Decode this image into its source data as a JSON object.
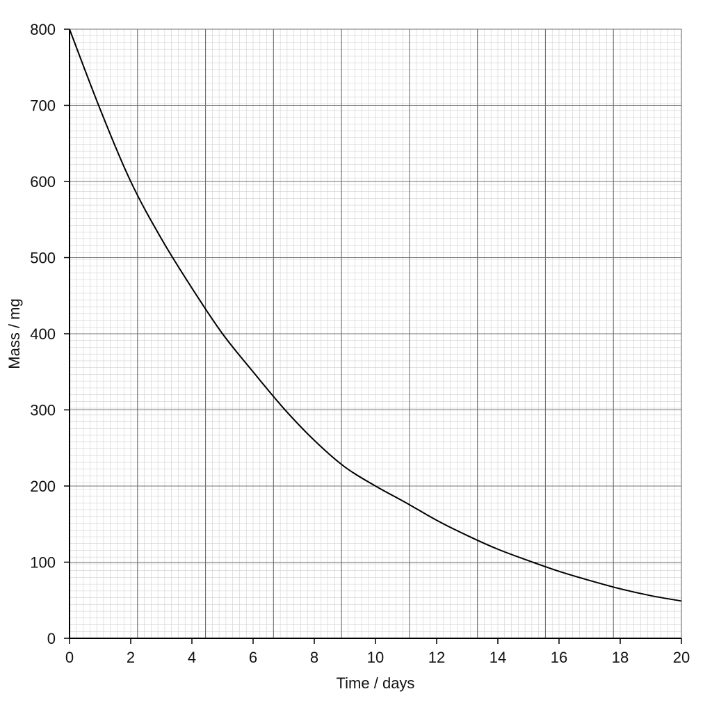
{
  "chart_data": {
    "type": "line",
    "xlabel": "Time / days",
    "ylabel": "Mass / mg",
    "xlim": [
      0,
      20
    ],
    "ylim": [
      0,
      800
    ],
    "x_ticks": [
      "0",
      "2",
      "4",
      "6",
      "8",
      "10",
      "12",
      "14",
      "16",
      "18",
      "20"
    ],
    "y_ticks": [
      "0",
      "100",
      "200",
      "300",
      "400",
      "500",
      "600",
      "700",
      "800"
    ],
    "grid": true,
    "series": [
      {
        "x": [
          0,
          1,
          2,
          3,
          4,
          5,
          6,
          7,
          8,
          9,
          10,
          11,
          12,
          13,
          14,
          15,
          16,
          17,
          18,
          19,
          20
        ],
        "y": [
          800,
          695,
          600,
          525,
          460,
          400,
          350,
          302,
          260,
          225,
          200,
          178,
          155,
          135,
          117,
          102,
          88,
          76,
          65,
          56,
          49
        ]
      }
    ],
    "colors": {
      "line": "#000000",
      "grid_major": "#707070",
      "grid_minor": "#cfcfcf",
      "axis": "#000000"
    }
  }
}
